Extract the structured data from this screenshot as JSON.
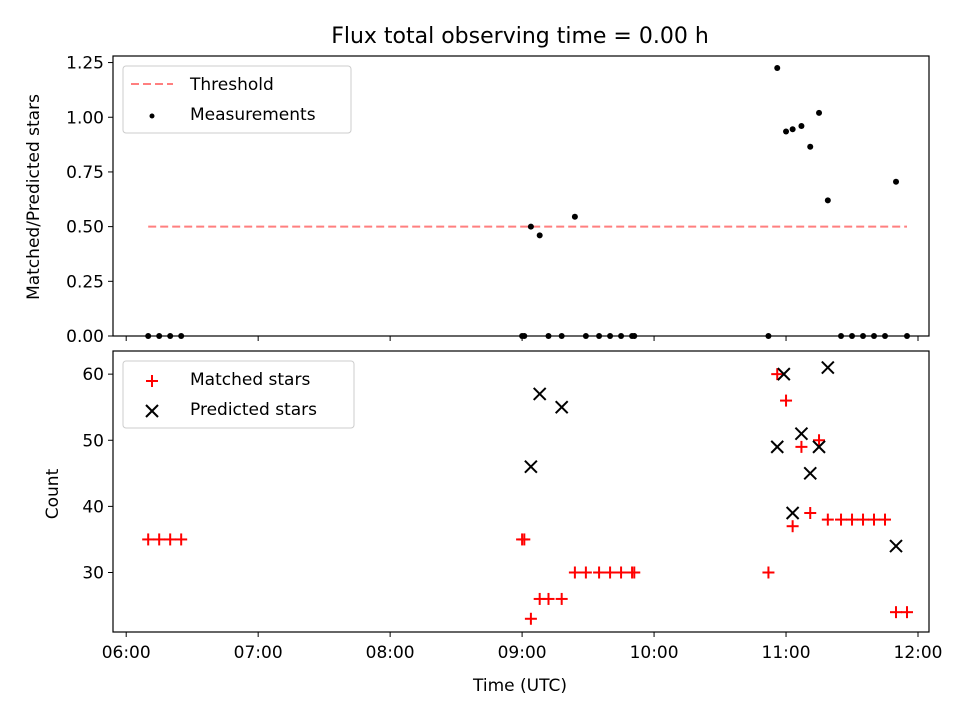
{
  "chart_data": [
    {
      "type": "scatter",
      "title": "Flux total observing time = 0.00 h",
      "ylabel": "Matched/Predicted stars",
      "xlabel": "",
      "ylim": [
        0,
        1.28
      ],
      "yticks": [
        0.0,
        0.25,
        0.5,
        0.75,
        1.0,
        1.25
      ],
      "ytick_labels": [
        "0.00",
        "0.25",
        "0.50",
        "0.75",
        "1.00",
        "1.25"
      ],
      "legend_position": "top-left",
      "threshold": {
        "name": "Threshold",
        "y": 0.5,
        "x_range": [
          "06:10",
          "11:55"
        ],
        "color": "#ff7f7f",
        "style": "dashed"
      },
      "series": [
        {
          "name": "Measurements",
          "color": "#000000",
          "marker": "dot",
          "x": [
            "06:10",
            "06:15",
            "06:20",
            "06:25",
            "09:00",
            "09:01",
            "09:04",
            "09:08",
            "09:12",
            "09:18",
            "09:24",
            "09:29",
            "09:35",
            "09:40",
            "09:45",
            "09:50",
            "09:51",
            "10:52",
            "10:56",
            "11:00",
            "11:03",
            "11:07",
            "11:11",
            "11:15",
            "11:19",
            "11:25",
            "11:30",
            "11:35",
            "11:40",
            "11:45",
            "11:50",
            "11:55"
          ],
          "y": [
            0,
            0,
            0,
            0,
            0,
            0,
            0.5,
            0.46,
            0,
            0,
            0.545,
            0,
            0,
            0,
            0,
            0,
            0,
            0,
            1.225,
            0.935,
            0.945,
            0.96,
            0.865,
            1.02,
            0.62,
            0,
            0,
            0,
            0,
            0,
            0.705,
            0
          ]
        }
      ]
    },
    {
      "type": "scatter",
      "title": "",
      "ylabel": "Count",
      "xlabel": "Time (UTC)",
      "xlim": [
        "05:54",
        "12:05"
      ],
      "ylim": [
        21,
        63.5
      ],
      "yticks": [
        30,
        40,
        50,
        60
      ],
      "xtick_labels": [
        "06:00",
        "07:00",
        "08:00",
        "09:00",
        "10:00",
        "11:00",
        "12:00"
      ],
      "legend_position": "top-left",
      "series": [
        {
          "name": "Matched stars",
          "color": "#ff0000",
          "marker": "plus",
          "x": [
            "06:10",
            "06:15",
            "06:20",
            "06:25",
            "09:00",
            "09:01",
            "09:04",
            "09:08",
            "09:12",
            "09:18",
            "09:24",
            "09:29",
            "09:35",
            "09:40",
            "09:45",
            "09:50",
            "09:51",
            "10:52",
            "10:56",
            "11:00",
            "11:03",
            "11:07",
            "11:11",
            "11:15",
            "11:19",
            "11:25",
            "11:30",
            "11:35",
            "11:40",
            "11:45",
            "11:50",
            "11:55"
          ],
          "y": [
            35,
            35,
            35,
            35,
            35,
            35,
            23,
            26,
            26,
            26,
            30,
            30,
            30,
            30,
            30,
            30,
            30,
            30,
            60,
            56,
            37,
            49,
            39,
            50,
            38,
            38,
            38,
            38,
            38,
            38,
            24,
            24
          ]
        },
        {
          "name": "Predicted stars",
          "color": "#000000",
          "marker": "x",
          "x": [
            "09:04",
            "09:08",
            "09:18",
            "10:56",
            "10:59",
            "11:03",
            "11:07",
            "11:11",
            "11:15",
            "11:19",
            "11:50"
          ],
          "y": [
            46,
            57,
            55,
            49,
            60,
            39,
            51,
            45,
            49,
            61,
            34
          ]
        }
      ]
    }
  ]
}
